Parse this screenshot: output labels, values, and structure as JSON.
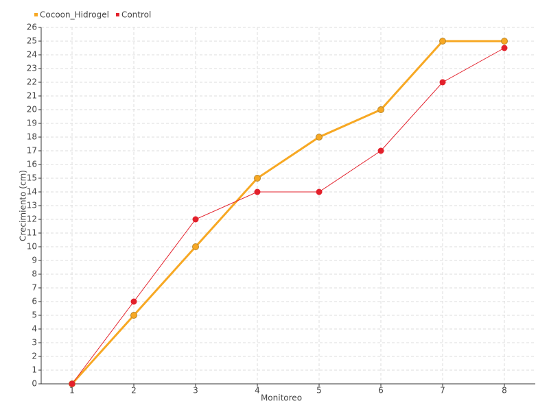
{
  "chart_data": {
    "type": "line",
    "x_label": "Monitoreo",
    "y_label": "Crecimiento (cm)",
    "x": [
      1,
      2,
      3,
      4,
      5,
      6,
      7,
      8
    ],
    "xlim": [
      0.5,
      8.5
    ],
    "xticks": [
      1,
      2,
      3,
      4,
      5,
      6,
      7,
      8
    ],
    "ylim": [
      0,
      26
    ],
    "yticks": [
      0,
      1,
      2,
      3,
      4,
      5,
      6,
      7,
      8,
      9,
      10,
      11,
      12,
      13,
      14,
      15,
      16,
      17,
      18,
      19,
      20,
      21,
      22,
      23,
      24,
      25,
      26
    ],
    "grid": true,
    "legend": "top-left",
    "series": [
      {
        "name": "Cocoon_Hidrogel",
        "color": "#f7a823",
        "values": [
          0,
          5,
          10,
          15,
          18,
          20,
          25,
          25
        ]
      },
      {
        "name": "Control",
        "color": "#e3202b",
        "values": [
          0,
          6,
          12,
          14,
          14,
          17,
          22,
          24.5
        ]
      }
    ]
  }
}
